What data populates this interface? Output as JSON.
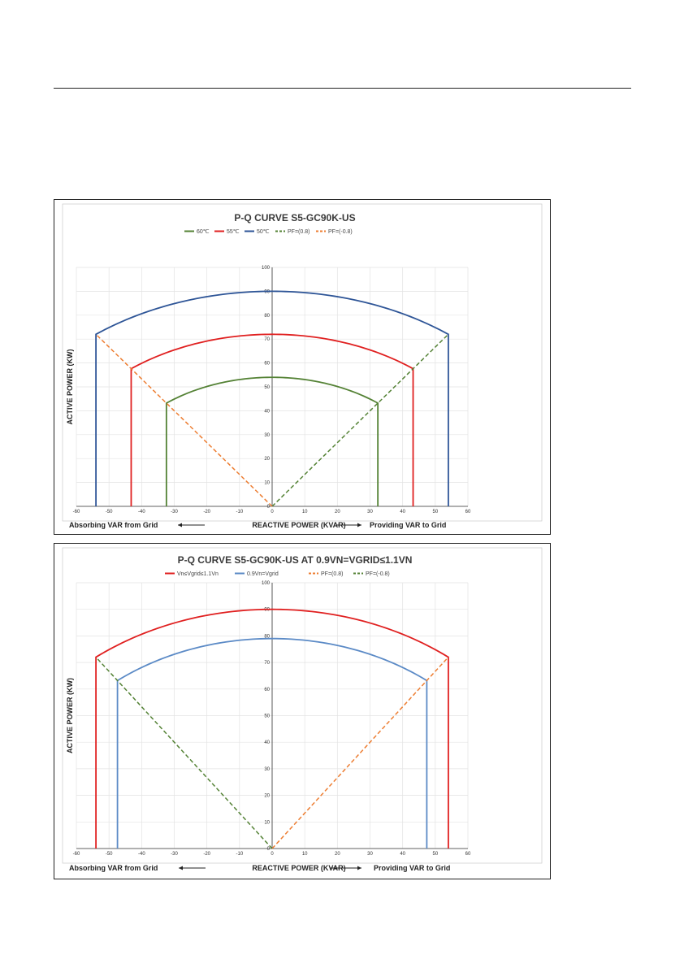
{
  "chart_data": [
    {
      "type": "line",
      "title": "P-Q CURVE S5-GC90K-US",
      "xlabel": "REACTIVE POWER (KVAR)",
      "ylabel": "ACTIVE POWER (KW)",
      "left_note": "Absorbing VAR from Grid",
      "right_note": "Providing VAR to Grid",
      "xlim": [
        -60,
        60
      ],
      "ylim": [
        0,
        100
      ],
      "xticks": [
        -60,
        -50,
        -40,
        -30,
        -20,
        -10,
        0,
        10,
        20,
        30,
        40,
        50,
        60
      ],
      "yticks": [
        0,
        10,
        20,
        30,
        40,
        50,
        60,
        70,
        80,
        90,
        100
      ],
      "grid": true,
      "legend_position": "top",
      "series": [
        {
          "name": "60℃",
          "color": "#548235",
          "style": "solid",
          "shape": "arc",
          "radius": 54,
          "x_limit": 32.4,
          "y_limit": 43.2
        },
        {
          "name": "55℃",
          "color": "#e02020",
          "style": "solid",
          "shape": "arc",
          "radius": 72,
          "x_limit": 43.2,
          "y_limit": 57.6
        },
        {
          "name": "50℃",
          "color": "#2e5597",
          "style": "solid",
          "shape": "arc",
          "radius": 90,
          "x_limit": 54,
          "y_limit": 72
        },
        {
          "name": "PF=(0.8)",
          "color": "#548235",
          "style": "dashed",
          "shape": "line",
          "points": [
            [
              0,
              0
            ],
            [
              54,
              72
            ]
          ]
        },
        {
          "name": "PF=(-0.8)",
          "color": "#ed7d31",
          "style": "dashed",
          "shape": "line",
          "points": [
            [
              0,
              0
            ],
            [
              -54,
              72
            ]
          ]
        }
      ]
    },
    {
      "type": "line",
      "title": "P-Q CURVE S5-GC90K-US AT 0.9VN=VGRID≤1.1VN",
      "xlabel": "REACTIVE POWER (KVAR)",
      "ylabel": "ACTIVE POWER (KW)",
      "left_note": "Absorbing VAR from Grid",
      "right_note": "Providing VAR to Grid",
      "xlim": [
        -60,
        60
      ],
      "ylim": [
        0,
        100
      ],
      "xticks": [
        -60,
        -50,
        -40,
        -30,
        -20,
        -10,
        0,
        10,
        20,
        30,
        40,
        50,
        60
      ],
      "yticks": [
        0,
        10,
        20,
        30,
        40,
        50,
        60,
        70,
        80,
        90,
        100
      ],
      "grid": true,
      "legend_position": "top",
      "series": [
        {
          "name": "Vn≤Vgrid≤1.1Vn",
          "color": "#e02020",
          "style": "solid",
          "shape": "arc",
          "radius": 90,
          "x_limit": 54,
          "y_limit": 72
        },
        {
          "name": "0.9Vn=Vgrid",
          "color": "#5b8ac6",
          "style": "solid",
          "shape": "arc",
          "radius": 79,
          "x_limit": 47.4,
          "y_limit": 63.2
        },
        {
          "name": "PF=(0.8)",
          "color": "#ed7d31",
          "style": "dashed",
          "shape": "line",
          "points": [
            [
              0,
              0
            ],
            [
              54,
              72
            ]
          ]
        },
        {
          "name": "PF=(-0.8)",
          "color": "#548235",
          "style": "dashed",
          "shape": "line",
          "points": [
            [
              0,
              0
            ],
            [
              -54,
              72
            ]
          ]
        }
      ]
    }
  ]
}
